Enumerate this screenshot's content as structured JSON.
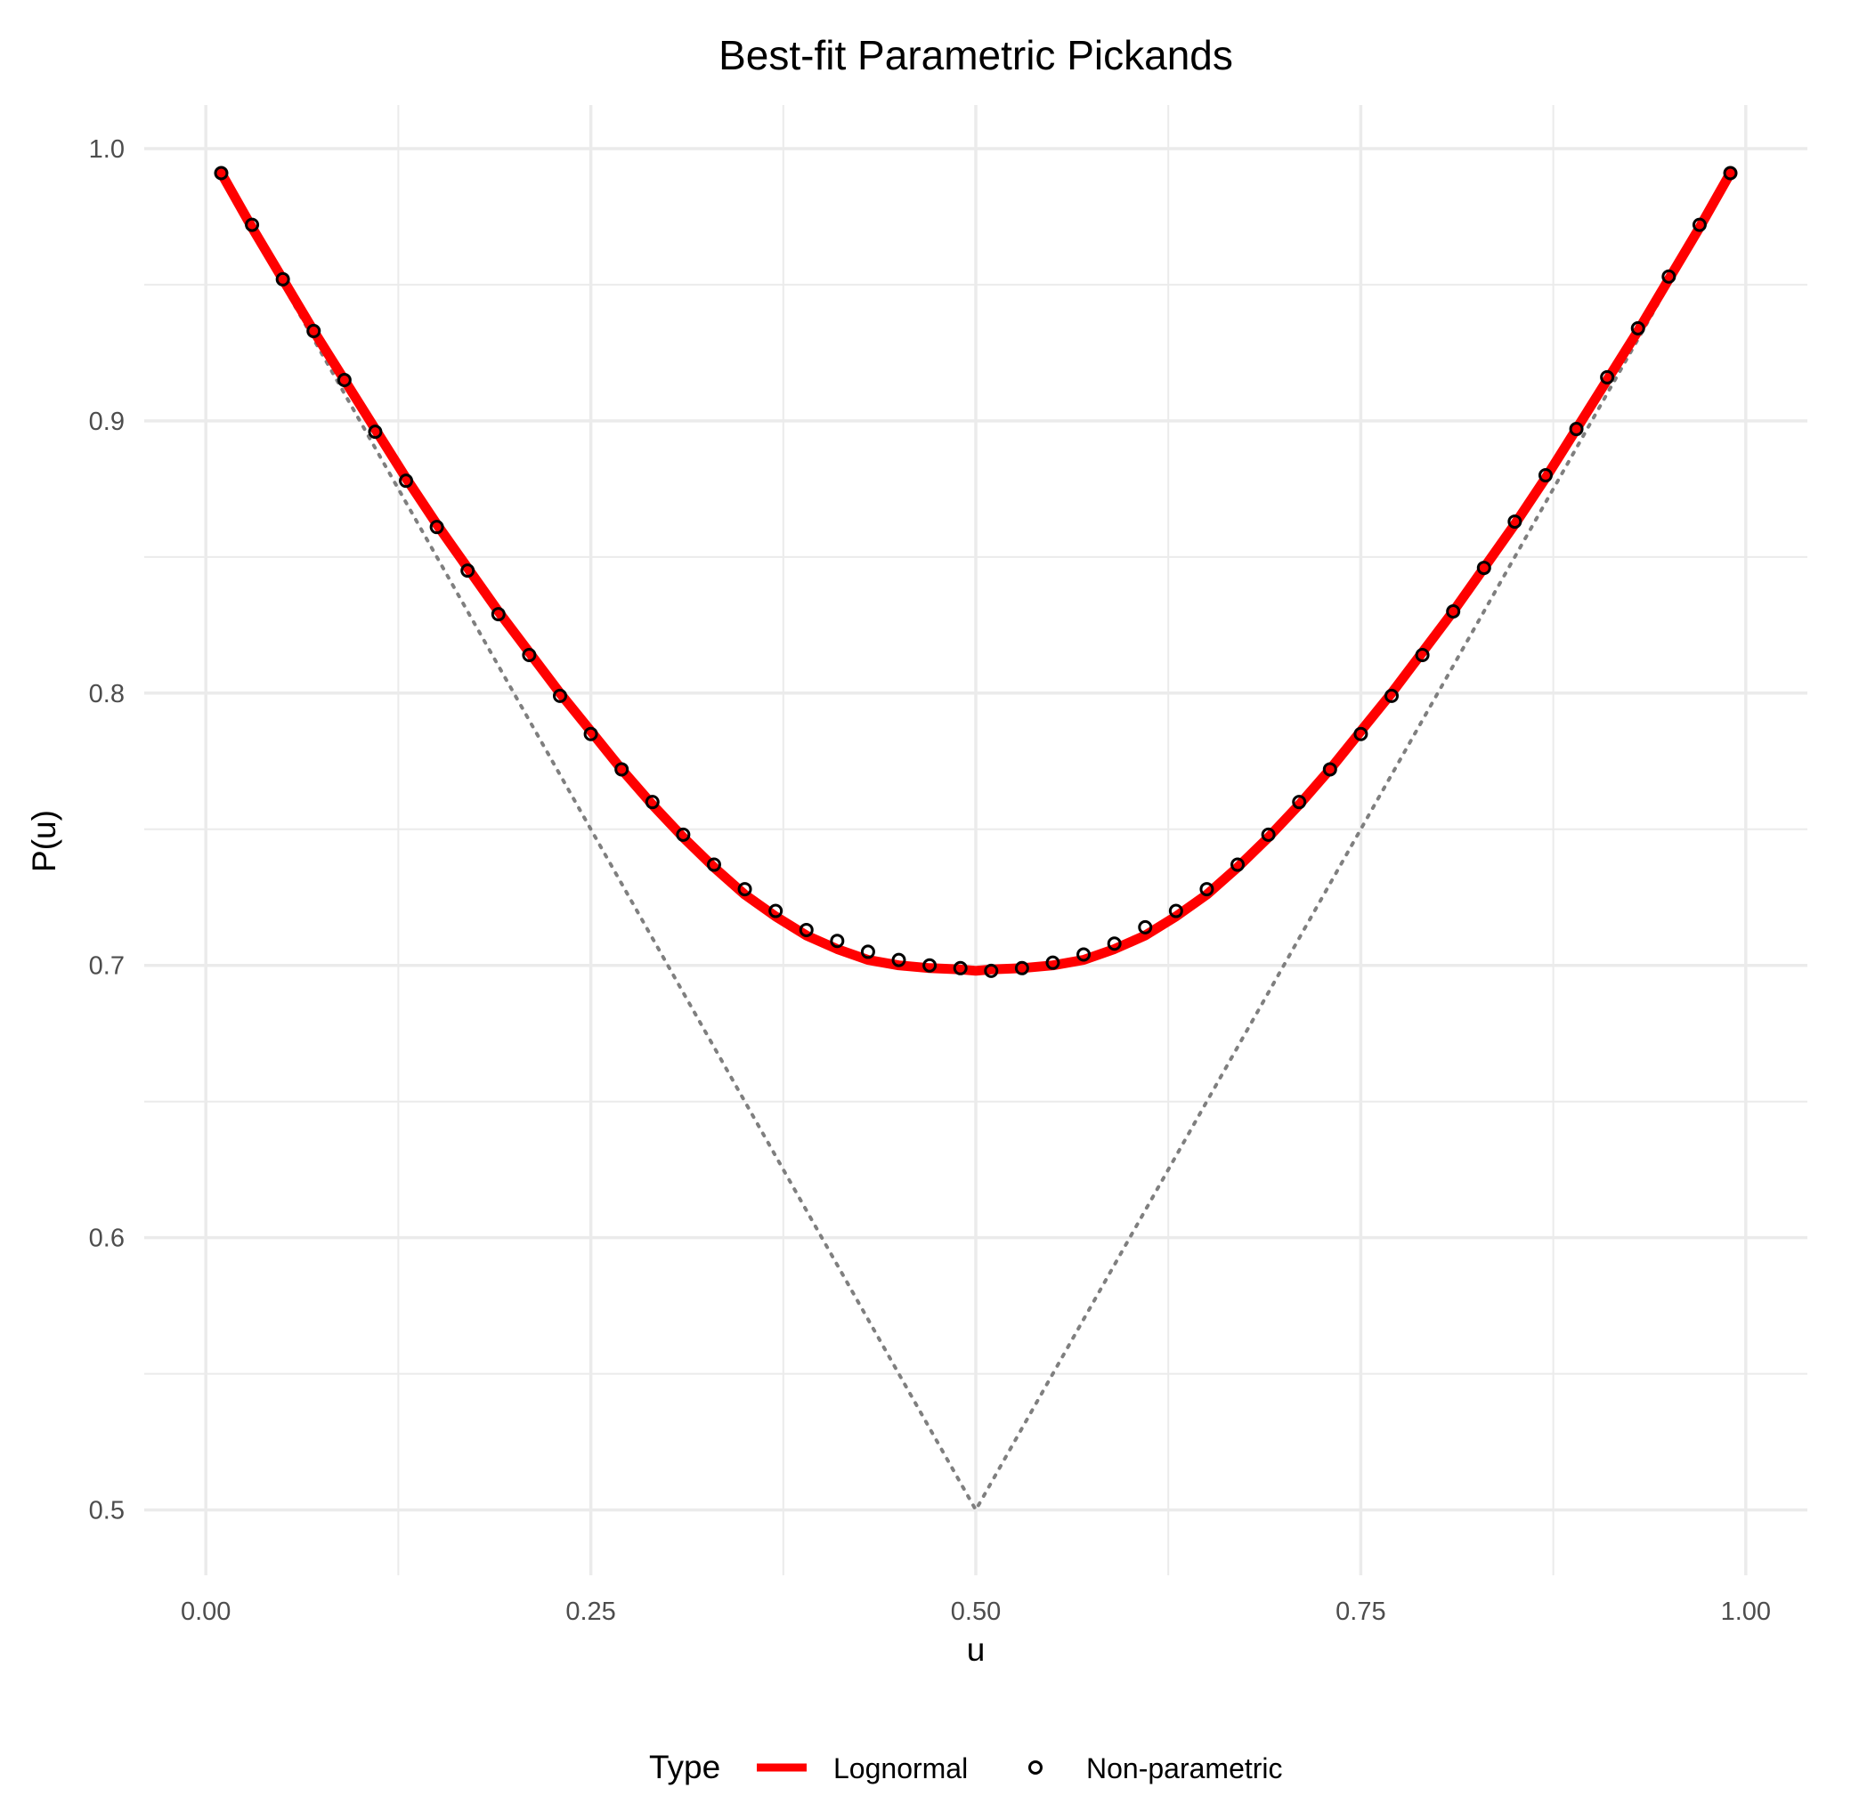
{
  "chart_data": {
    "type": "line",
    "title": "Best-fit Parametric Pickands",
    "xlabel": "u",
    "ylabel": "P(u)",
    "xlim": [
      -0.04,
      1.04
    ],
    "ylim": [
      0.476,
      1.016
    ],
    "x_ticks": [
      {
        "value": 0.0,
        "label": "0.00"
      },
      {
        "value": 0.25,
        "label": "0.25"
      },
      {
        "value": 0.5,
        "label": "0.50"
      },
      {
        "value": 0.75,
        "label": "0.75"
      },
      {
        "value": 1.0,
        "label": "1.00"
      }
    ],
    "y_ticks": [
      {
        "value": 0.5,
        "label": "0.5"
      },
      {
        "value": 0.6,
        "label": "0.6"
      },
      {
        "value": 0.7,
        "label": "0.7"
      },
      {
        "value": 0.8,
        "label": "0.8"
      },
      {
        "value": 0.9,
        "label": "0.9"
      },
      {
        "value": 1.0,
        "label": "1.0"
      }
    ],
    "grid": true,
    "legend": {
      "title": "Type",
      "position": "bottom",
      "entries": [
        {
          "label": "Lognormal",
          "kind": "line",
          "color": "#ff0000"
        },
        {
          "label": "Non-parametric",
          "kind": "point",
          "color": "#000000"
        }
      ]
    },
    "series": [
      {
        "name": "Lognormal",
        "kind": "line",
        "color": "#ff0000",
        "x": [
          0.01,
          0.03,
          0.05,
          0.07,
          0.09,
          0.11,
          0.13,
          0.15,
          0.17,
          0.19,
          0.21,
          0.23,
          0.25,
          0.27,
          0.29,
          0.31,
          0.33,
          0.35,
          0.37,
          0.39,
          0.41,
          0.43,
          0.45,
          0.47,
          0.49,
          0.5,
          0.51,
          0.53,
          0.55,
          0.57,
          0.59,
          0.61,
          0.63,
          0.65,
          0.67,
          0.69,
          0.71,
          0.73,
          0.75,
          0.77,
          0.79,
          0.81,
          0.83,
          0.85,
          0.87,
          0.89,
          0.91,
          0.93,
          0.95,
          0.97,
          0.99
        ],
        "y": [
          0.991,
          0.971,
          0.952,
          0.933,
          0.915,
          0.897,
          0.879,
          0.862,
          0.846,
          0.83,
          0.815,
          0.8,
          0.786,
          0.772,
          0.759,
          0.747,
          0.736,
          0.726,
          0.718,
          0.711,
          0.706,
          0.702,
          0.7,
          0.699,
          0.6985,
          0.698,
          0.6985,
          0.699,
          0.7,
          0.702,
          0.706,
          0.711,
          0.718,
          0.726,
          0.736,
          0.747,
          0.759,
          0.772,
          0.786,
          0.8,
          0.815,
          0.83,
          0.846,
          0.862,
          0.879,
          0.897,
          0.915,
          0.933,
          0.952,
          0.971,
          0.991
        ]
      },
      {
        "name": "Non-parametric",
        "kind": "point",
        "color": "#000000",
        "x": [
          0.01,
          0.03,
          0.05,
          0.07,
          0.09,
          0.11,
          0.13,
          0.15,
          0.17,
          0.19,
          0.21,
          0.23,
          0.25,
          0.27,
          0.29,
          0.31,
          0.33,
          0.35,
          0.37,
          0.39,
          0.41,
          0.43,
          0.45,
          0.47,
          0.49,
          0.51,
          0.53,
          0.55,
          0.57,
          0.59,
          0.61,
          0.63,
          0.65,
          0.67,
          0.69,
          0.71,
          0.73,
          0.75,
          0.77,
          0.79,
          0.81,
          0.83,
          0.85,
          0.87,
          0.89,
          0.91,
          0.93,
          0.95,
          0.97,
          0.99
        ],
        "y": [
          0.991,
          0.972,
          0.952,
          0.933,
          0.915,
          0.896,
          0.878,
          0.861,
          0.845,
          0.829,
          0.814,
          0.799,
          0.785,
          0.772,
          0.76,
          0.748,
          0.737,
          0.728,
          0.72,
          0.713,
          0.709,
          0.705,
          0.702,
          0.7,
          0.699,
          0.698,
          0.699,
          0.701,
          0.704,
          0.708,
          0.714,
          0.72,
          0.728,
          0.737,
          0.748,
          0.76,
          0.772,
          0.785,
          0.799,
          0.814,
          0.83,
          0.846,
          0.863,
          0.88,
          0.897,
          0.916,
          0.934,
          0.953,
          0.972,
          0.991
        ]
      },
      {
        "name": "",
        "kind": "reference",
        "color": "#7f7f7f",
        "x": [
          0.01,
          0.5,
          0.99
        ],
        "y": [
          0.99,
          0.5,
          0.99
        ]
      }
    ]
  }
}
